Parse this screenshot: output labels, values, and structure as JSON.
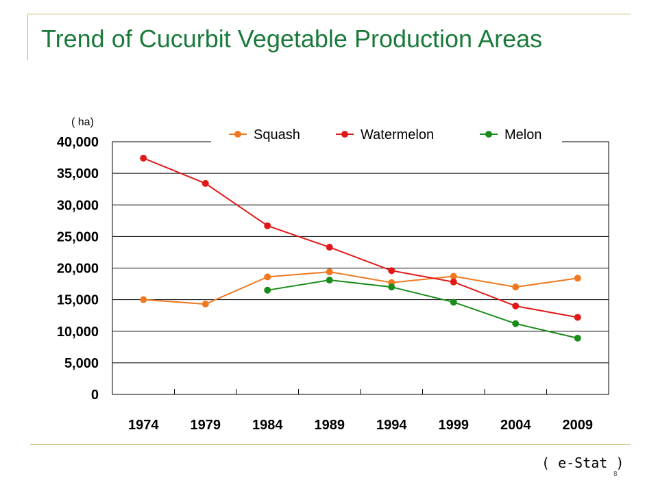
{
  "slide": {
    "title": "Trend of Cucurbit Vegetable Production Areas",
    "source": "( e-Stat )",
    "page_number": "8"
  },
  "colors": {
    "title": "#1a7a3a",
    "frame": "#c9b35a",
    "squash": "#f07820",
    "watermelon": "#e01818",
    "melon": "#1a8c1a"
  },
  "chart_data": {
    "type": "line",
    "title": "",
    "xlabel": "",
    "ylabel": "( ha)",
    "categories": [
      "1974",
      "1979",
      "1984",
      "1989",
      "1994",
      "1999",
      "2004",
      "2009"
    ],
    "ylim": [
      0,
      40000
    ],
    "yticks": [
      "0",
      "5,000",
      "10,000",
      "15,000",
      "20,000",
      "25,000",
      "30,000",
      "35,000",
      "40,000"
    ],
    "grid": true,
    "legend": "top",
    "series": [
      {
        "name": "Squash",
        "color": "#f07820",
        "values": [
          15000,
          14300,
          18600,
          19400,
          17700,
          18700,
          17000,
          18400
        ]
      },
      {
        "name": "Watermelon",
        "color": "#e01818",
        "values": [
          37400,
          33400,
          26700,
          23300,
          19600,
          17800,
          14000,
          12200
        ]
      },
      {
        "name": "Melon",
        "color": "#1a8c1a",
        "values": [
          null,
          null,
          16500,
          18100,
          17000,
          14600,
          11200,
          8900
        ]
      }
    ]
  }
}
